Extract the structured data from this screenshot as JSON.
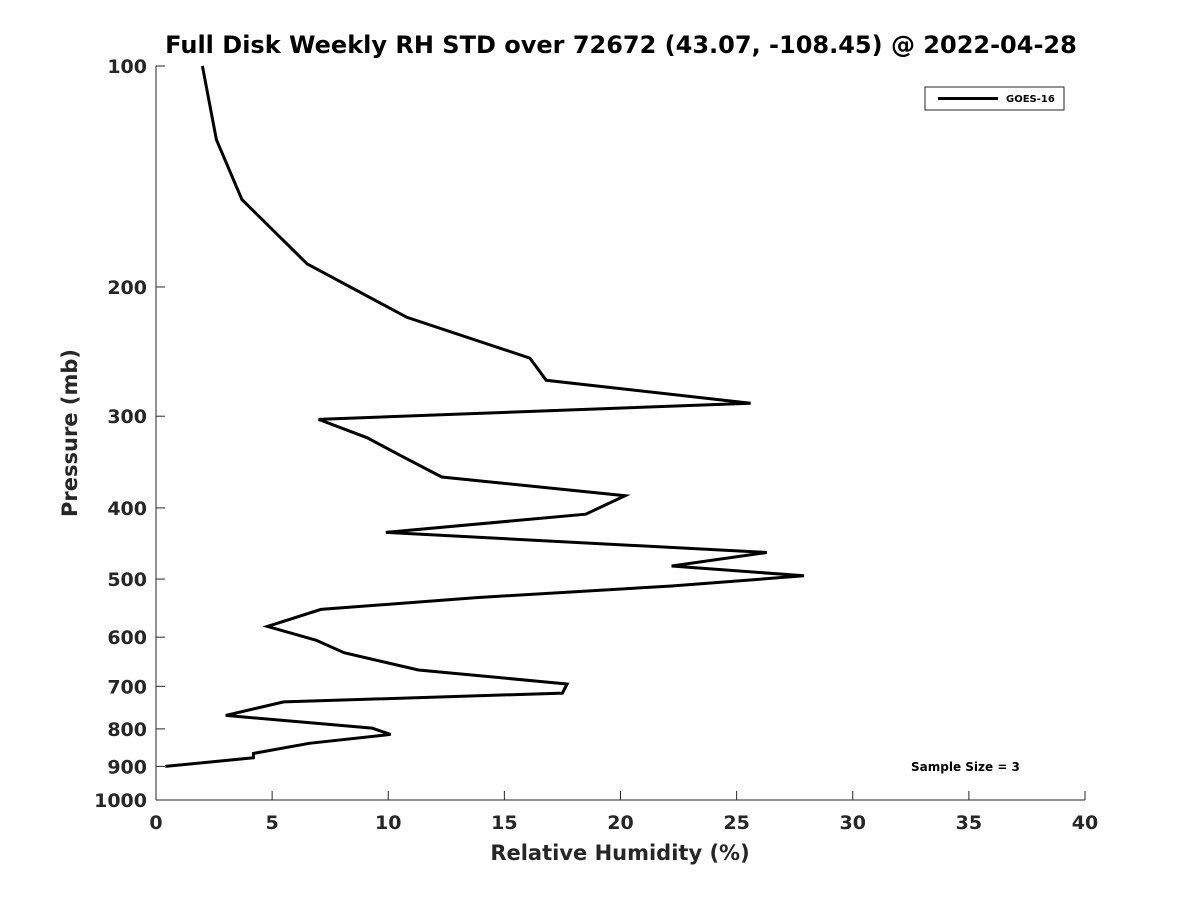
{
  "chart_data": {
    "type": "line",
    "title": "Full Disk Weekly RH STD over 72672 (43.07, -108.45) @ 2022-04-28",
    "xlabel": "Relative Humidity (%)",
    "ylabel": "Pressure (mb)",
    "xlim": [
      0,
      40
    ],
    "ylim": [
      1000,
      100
    ],
    "y_scale": "log",
    "y_reversed": true,
    "grid": false,
    "legend_position": "top-right",
    "x_ticks": [
      0,
      5,
      10,
      15,
      20,
      25,
      30,
      35,
      40
    ],
    "y_ticks": [
      100,
      200,
      300,
      400,
      500,
      600,
      700,
      800,
      900,
      1000
    ],
    "annotation": "Sample Size = 3",
    "series": [
      {
        "name": "GOES-16",
        "color": "#000000",
        "points": [
          [
            2.0,
            100
          ],
          [
            2.6,
            126
          ],
          [
            3.7,
            152
          ],
          [
            6.5,
            186
          ],
          [
            10.8,
            220
          ],
          [
            16.1,
            250
          ],
          [
            16.8,
            268
          ],
          [
            25.6,
            288
          ],
          [
            7.0,
            303
          ],
          [
            9.1,
            321
          ],
          [
            10.5,
            339
          ],
          [
            12.3,
            363
          ],
          [
            20.2,
            385
          ],
          [
            18.5,
            408
          ],
          [
            9.9,
            432
          ],
          [
            26.3,
            460
          ],
          [
            22.2,
            480
          ],
          [
            27.9,
            495
          ],
          [
            22.2,
            511
          ],
          [
            13.8,
            530
          ],
          [
            7.1,
            550
          ],
          [
            4.8,
            580
          ],
          [
            6.9,
            606
          ],
          [
            8.1,
            630
          ],
          [
            11.3,
            665
          ],
          [
            17.7,
            695
          ],
          [
            17.5,
            715
          ],
          [
            5.5,
            735
          ],
          [
            3.0,
            767
          ],
          [
            9.3,
            798
          ],
          [
            10.1,
            814
          ],
          [
            6.6,
            837
          ],
          [
            4.2,
            864
          ],
          [
            4.2,
            876
          ],
          [
            0.4,
            900
          ]
        ]
      }
    ]
  }
}
